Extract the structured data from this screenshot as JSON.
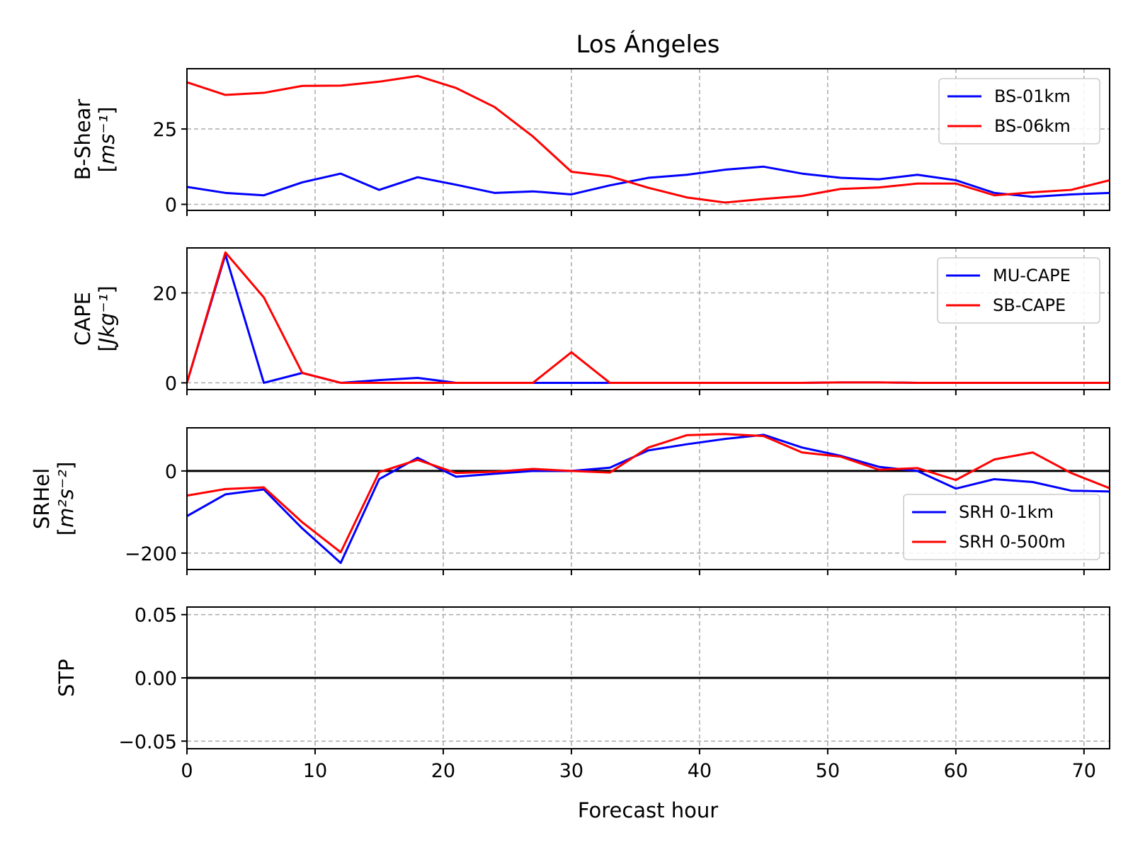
{
  "figure": {
    "title": "Los Ángeles",
    "xlabel": "Forecast hour"
  },
  "chart_data": [
    {
      "type": "line",
      "ylabel": "B-Shear",
      "ylabel_unit": "[ms⁻¹]",
      "xlim": [
        0,
        72
      ],
      "ylim": [
        -2,
        45
      ],
      "xticks": [
        0,
        10,
        20,
        30,
        40,
        50,
        60,
        70
      ],
      "yticks": [
        0,
        25
      ],
      "ytick_labels": [
        "0",
        "25"
      ],
      "grid": true,
      "zero_line": false,
      "legend_position": "upper right",
      "x": [
        0,
        3,
        6,
        9,
        12,
        15,
        18,
        21,
        24,
        27,
        30,
        33,
        36,
        39,
        42,
        45,
        48,
        51,
        54,
        57,
        60,
        63,
        66,
        69,
        72
      ],
      "series": [
        {
          "name": "BS-01km",
          "color": "#0000ff",
          "values": [
            5.8,
            3.8,
            3.0,
            7.3,
            10.2,
            4.8,
            9.0,
            6.5,
            3.8,
            4.3,
            3.3,
            6.3,
            8.8,
            9.8,
            11.5,
            12.5,
            10.2,
            8.8,
            8.3,
            9.8,
            8.0,
            3.8,
            2.5,
            3.3,
            3.8
          ]
        },
        {
          "name": "BS-06km",
          "color": "#ff0000",
          "values": [
            40.5,
            36.3,
            37.0,
            39.3,
            39.4,
            40.7,
            42.6,
            38.6,
            32.3,
            22.5,
            10.8,
            9.3,
            5.5,
            2.3,
            0.6,
            1.8,
            2.8,
            5.1,
            5.6,
            6.9,
            6.9,
            3.0,
            4.0,
            4.8,
            8.0
          ]
        }
      ]
    },
    {
      "type": "line",
      "ylabel": "CAPE",
      "ylabel_unit": "[Jkg⁻¹]",
      "xlim": [
        0,
        72
      ],
      "ylim": [
        -1.5,
        30
      ],
      "xticks": [
        0,
        10,
        20,
        30,
        40,
        50,
        60,
        70
      ],
      "yticks": [
        0,
        20
      ],
      "ytick_labels": [
        "0",
        "20"
      ],
      "grid": true,
      "zero_line": false,
      "legend_position": "upper right",
      "x": [
        0,
        3,
        6,
        9,
        12,
        15,
        18,
        21,
        24,
        27,
        30,
        33,
        36,
        39,
        42,
        45,
        48,
        51,
        54,
        57,
        60,
        63,
        66,
        69,
        72
      ],
      "series": [
        {
          "name": "MU-CAPE",
          "color": "#0000ff",
          "values": [
            0,
            28.5,
            0,
            2.2,
            0,
            0.6,
            1.1,
            0,
            0,
            0,
            0,
            0,
            0,
            0,
            0,
            0,
            0,
            0.1,
            0.1,
            0,
            0,
            0,
            0,
            0,
            0
          ]
        },
        {
          "name": "SB-CAPE",
          "color": "#ff0000",
          "values": [
            0,
            29.0,
            19.0,
            2.2,
            0,
            0,
            0,
            0,
            0,
            0,
            6.8,
            0,
            0,
            0,
            0,
            0,
            0,
            0.1,
            0.1,
            0,
            0,
            0,
            0,
            0,
            0
          ]
        }
      ]
    },
    {
      "type": "line",
      "ylabel": "SRHel",
      "ylabel_unit": "[m²s⁻²]",
      "xlim": [
        0,
        72
      ],
      "ylim": [
        -240,
        105
      ],
      "xticks": [
        0,
        10,
        20,
        30,
        40,
        50,
        60,
        70
      ],
      "yticks": [
        -200,
        0
      ],
      "ytick_labels": [
        "−200",
        "0"
      ],
      "grid": true,
      "zero_line": true,
      "legend_position": "lower right",
      "x": [
        0,
        3,
        6,
        9,
        12,
        15,
        18,
        21,
        24,
        27,
        30,
        33,
        36,
        39,
        42,
        45,
        48,
        51,
        54,
        57,
        60,
        63,
        66,
        69,
        72
      ],
      "series": [
        {
          "name": "SRH 0-1km",
          "color": "#0000ff",
          "values": [
            -110,
            -57,
            -45,
            -140,
            -224,
            -20,
            32,
            -14,
            -7,
            0,
            0,
            8,
            50,
            65,
            78,
            88,
            57,
            37,
            10,
            0,
            -43,
            -20,
            -27,
            -48,
            -50
          ]
        },
        {
          "name": "SRH 0-500m",
          "color": "#ff0000",
          "values": [
            -60,
            -44,
            -40,
            -125,
            -198,
            -3,
            27,
            -5,
            -2,
            5,
            0,
            -4,
            57,
            87,
            90,
            85,
            45,
            35,
            3,
            7,
            -22,
            28,
            45,
            -5,
            -42
          ]
        }
      ]
    },
    {
      "type": "line",
      "ylabel": "STP",
      "xlim": [
        0,
        72
      ],
      "ylim": [
        -0.056,
        0.056
      ],
      "xticks": [
        0,
        10,
        20,
        30,
        40,
        50,
        60,
        70
      ],
      "yticks": [
        -0.05,
        0,
        0.05
      ],
      "ytick_labels": [
        "−0.05",
        "0.00",
        "0.05"
      ],
      "xtick_labels": [
        "0",
        "10",
        "20",
        "30",
        "40",
        "50",
        "60",
        "70"
      ],
      "grid": true,
      "zero_line": true,
      "legend_position": "",
      "x": [],
      "series": []
    }
  ]
}
